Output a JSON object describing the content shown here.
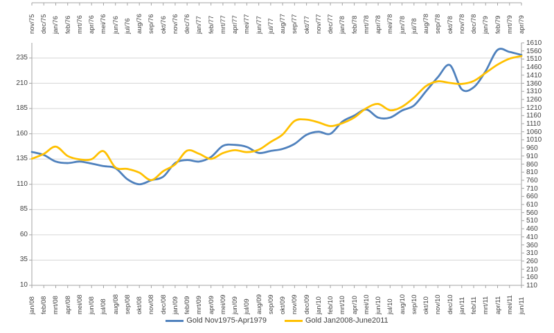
{
  "chart_data": {
    "type": "line",
    "title": "",
    "grid": true,
    "legend_position": "bottom",
    "smoothed_lines": true,
    "axes": {
      "left": {
        "min": 10,
        "max": 250,
        "tick_step": 25,
        "first_label": 10,
        "last_label": 235
      },
      "right": {
        "min": 110,
        "max": 1610,
        "tick_step": 50,
        "first_label": 110,
        "last_label": 1610
      },
      "top_categories": [
        "nov/75",
        "dec/75",
        "jan/76",
        "feb/76",
        "mrt/76",
        "apr/76",
        "mei/76",
        "jun/76",
        "jul/76",
        "aug/76",
        "sep/76",
        "okt/76",
        "nov/76",
        "dec/76",
        "jan/77",
        "feb/77",
        "mrt/77",
        "apr/77",
        "mei/77",
        "jun/77",
        "jul/77",
        "aug/77",
        "sep/77",
        "okt/77",
        "nov/77",
        "dec/77",
        "jan/78",
        "feb/78",
        "mrt/78",
        "apr/78",
        "mei/78",
        "jun/78",
        "jul/78",
        "aug/78",
        "sep/78",
        "okt/78",
        "nov/78",
        "dec/78",
        "jan/79",
        "feb/79",
        "mrt/79",
        "apr/79"
      ],
      "bottom_categories": [
        "jan/08",
        "feb/08",
        "mrt/08",
        "apr/08",
        "mei/08",
        "jun/08",
        "jul/08",
        "aug/08",
        "sep/08",
        "okt/08",
        "nov/08",
        "dec/08",
        "jan/09",
        "feb/09",
        "mrt/09",
        "apr/09",
        "mei/09",
        "jun/09",
        "jul/09",
        "aug/09",
        "sep/09",
        "okt/09",
        "nov/09",
        "dec/09",
        "jan/10",
        "feb/10",
        "mrt/10",
        "apr/10",
        "mei/10",
        "jun/10",
        "jul/10",
        "aug/10",
        "sep/10",
        "okt/10",
        "nov/10",
        "dec/10",
        "jan/11",
        "feb/11",
        "mrt/11",
        "apr/11",
        "mei/11",
        "jun/11"
      ]
    },
    "series": [
      {
        "name": "Gold Nov1975-Apr1979",
        "color": "#4F81BD",
        "value_axis": "left",
        "category_axis": "top",
        "values": [
          142,
          139,
          132.5,
          131,
          132.5,
          130.5,
          128,
          126,
          115,
          110,
          114,
          117.5,
          131,
          134,
          132.5,
          137,
          148,
          149,
          147,
          141,
          143,
          145,
          150,
          159,
          162,
          160,
          172,
          178,
          184,
          176,
          176,
          183,
          188,
          202,
          216,
          228,
          204,
          206,
          222,
          243,
          241,
          238
        ]
      },
      {
        "name": "Gold Jan2008-June2011",
        "color": "#FFC000",
        "value_axis": "right",
        "category_axis": "bottom",
        "values": [
          893,
          923,
          968,
          910,
          889,
          890,
          940,
          839,
          830,
          807,
          761,
          816,
          858,
          943,
          924,
          892,
          928,
          946,
          934,
          949,
          997,
          1043,
          1127,
          1135,
          1118,
          1095,
          1113,
          1148,
          1205,
          1232,
          1193,
          1215,
          1271,
          1342,
          1372,
          1362,
          1356,
          1374,
          1424,
          1475,
          1512,
          1528
        ]
      }
    ],
    "colors": {
      "gridline": "#D6D6D6",
      "axis_line": "#A3A3A3",
      "tick": "#A3A3A3",
      "label_text": "#3F3F3F",
      "background": "#FFFFFF"
    }
  }
}
